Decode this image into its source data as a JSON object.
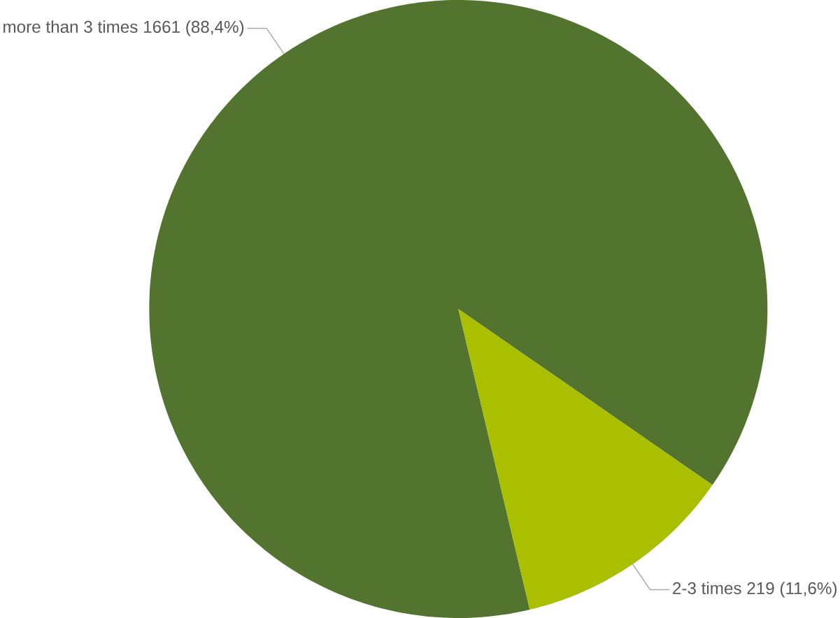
{
  "chart_data": {
    "type": "pie",
    "categories": [
      "more than 3 times",
      "2-3 times"
    ],
    "values": [
      1661,
      219
    ],
    "value_labels": [
      "1661 (88,4%)",
      "219 (11,6%)"
    ],
    "colors": [
      "#52742f",
      "#a9bf00"
    ]
  }
}
